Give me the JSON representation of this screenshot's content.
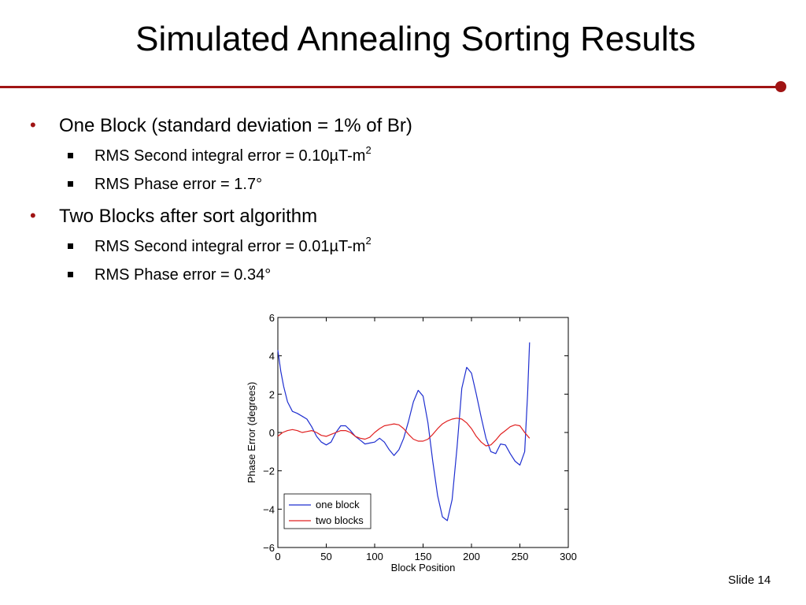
{
  "slide": {
    "title": "Simulated Annealing Sorting Results",
    "accent_color": "#a01414",
    "number_label": "Slide 14"
  },
  "bullets": [
    {
      "text": "One Block (standard deviation = 1% of Br)",
      "marker": "•",
      "subitems": [
        {
          "text": "RMS Second integral error = 0.10µT-m",
          "sup": "2"
        },
        {
          "text": "RMS Phase error = 1.7°",
          "sup": ""
        }
      ]
    },
    {
      "text": "Two Blocks after sort algorithm",
      "marker": "•",
      "subitems": [
        {
          "text": "RMS Second integral error = 0.01µT-m",
          "sup": "2"
        },
        {
          "text": "RMS Phase error = 0.34°",
          "sup": ""
        }
      ]
    }
  ],
  "chart_data": {
    "type": "line",
    "title": "",
    "xlabel": "Block Position",
    "ylabel": "Phase Error (degrees)",
    "xlim": [
      0,
      300
    ],
    "ylim": [
      -6,
      6
    ],
    "xticks": [
      "0",
      "50",
      "100",
      "150",
      "200",
      "250",
      "300"
    ],
    "yticks": [
      "6",
      "4",
      "2",
      "0",
      "−2",
      "−4",
      "−6"
    ],
    "grid": false,
    "legend": "bottom-left",
    "series": [
      {
        "name": "one block",
        "color": "#1f2fd0",
        "points": [
          [
            0,
            4.3
          ],
          [
            3,
            3.2
          ],
          [
            6,
            2.4
          ],
          [
            10,
            1.6
          ],
          [
            15,
            1.1
          ],
          [
            20,
            1.0
          ],
          [
            25,
            0.85
          ],
          [
            30,
            0.7
          ],
          [
            35,
            0.3
          ],
          [
            40,
            -0.2
          ],
          [
            45,
            -0.5
          ],
          [
            50,
            -0.65
          ],
          [
            55,
            -0.5
          ],
          [
            60,
            0.0
          ],
          [
            65,
            0.35
          ],
          [
            70,
            0.35
          ],
          [
            75,
            0.1
          ],
          [
            80,
            -0.2
          ],
          [
            85,
            -0.4
          ],
          [
            90,
            -0.6
          ],
          [
            95,
            -0.55
          ],
          [
            100,
            -0.5
          ],
          [
            105,
            -0.3
          ],
          [
            110,
            -0.5
          ],
          [
            115,
            -0.9
          ],
          [
            120,
            -1.2
          ],
          [
            125,
            -0.9
          ],
          [
            130,
            -0.3
          ],
          [
            135,
            0.6
          ],
          [
            140,
            1.6
          ],
          [
            145,
            2.2
          ],
          [
            150,
            1.9
          ],
          [
            155,
            0.5
          ],
          [
            160,
            -1.5
          ],
          [
            165,
            -3.3
          ],
          [
            170,
            -4.4
          ],
          [
            175,
            -4.6
          ],
          [
            180,
            -3.5
          ],
          [
            185,
            -0.8
          ],
          [
            190,
            2.3
          ],
          [
            195,
            3.4
          ],
          [
            200,
            3.1
          ],
          [
            205,
            2.0
          ],
          [
            210,
            0.8
          ],
          [
            215,
            -0.3
          ],
          [
            220,
            -1.0
          ],
          [
            225,
            -1.1
          ],
          [
            230,
            -0.6
          ],
          [
            235,
            -0.65
          ],
          [
            240,
            -1.1
          ],
          [
            245,
            -1.5
          ],
          [
            250,
            -1.7
          ],
          [
            255,
            -1.0
          ],
          [
            258,
            2.0
          ],
          [
            260,
            4.7
          ]
        ]
      },
      {
        "name": "two blocks",
        "color": "#e02020",
        "points": [
          [
            0,
            -0.2
          ],
          [
            5,
            0.0
          ],
          [
            10,
            0.1
          ],
          [
            15,
            0.15
          ],
          [
            20,
            0.1
          ],
          [
            25,
            0.0
          ],
          [
            30,
            0.05
          ],
          [
            35,
            0.1
          ],
          [
            40,
            0.0
          ],
          [
            45,
            -0.15
          ],
          [
            50,
            -0.2
          ],
          [
            55,
            -0.1
          ],
          [
            60,
            0.0
          ],
          [
            65,
            0.1
          ],
          [
            70,
            0.1
          ],
          [
            75,
            0.0
          ],
          [
            80,
            -0.2
          ],
          [
            85,
            -0.3
          ],
          [
            90,
            -0.35
          ],
          [
            95,
            -0.25
          ],
          [
            100,
            0.0
          ],
          [
            105,
            0.2
          ],
          [
            110,
            0.35
          ],
          [
            115,
            0.4
          ],
          [
            120,
            0.45
          ],
          [
            125,
            0.4
          ],
          [
            130,
            0.2
          ],
          [
            135,
            -0.1
          ],
          [
            140,
            -0.35
          ],
          [
            145,
            -0.45
          ],
          [
            150,
            -0.45
          ],
          [
            155,
            -0.35
          ],
          [
            160,
            -0.1
          ],
          [
            165,
            0.2
          ],
          [
            170,
            0.45
          ],
          [
            175,
            0.6
          ],
          [
            180,
            0.7
          ],
          [
            185,
            0.75
          ],
          [
            190,
            0.7
          ],
          [
            195,
            0.5
          ],
          [
            200,
            0.2
          ],
          [
            205,
            -0.2
          ],
          [
            210,
            -0.5
          ],
          [
            215,
            -0.7
          ],
          [
            220,
            -0.65
          ],
          [
            225,
            -0.4
          ],
          [
            230,
            -0.1
          ],
          [
            235,
            0.1
          ],
          [
            240,
            0.3
          ],
          [
            245,
            0.4
          ],
          [
            250,
            0.35
          ],
          [
            255,
            0.0
          ],
          [
            260,
            -0.3
          ]
        ]
      }
    ]
  }
}
